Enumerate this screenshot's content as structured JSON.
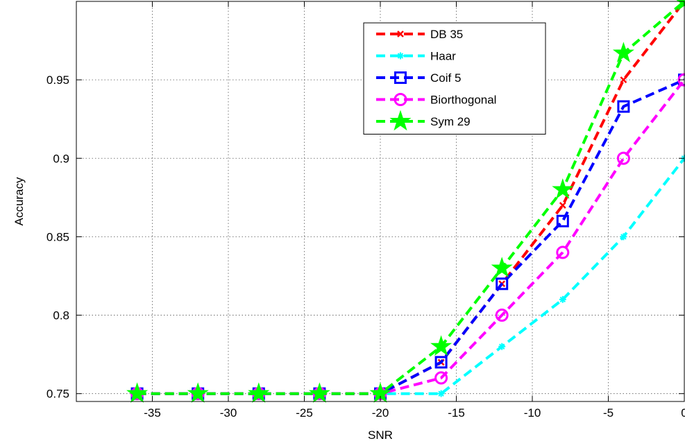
{
  "chart_data": {
    "type": "line",
    "title": "",
    "xlabel": "SNR",
    "ylabel": "Accuracy",
    "xlim": [
      -40,
      0
    ],
    "ylim": [
      0.745,
      1.0
    ],
    "xticks": [
      -35,
      -30,
      -25,
      -20,
      -15,
      -10,
      -5,
      0
    ],
    "yticks": [
      0.75,
      0.8,
      0.85,
      0.9,
      0.95
    ],
    "grid": true,
    "legend_position": "top-right",
    "x": [
      -36,
      -32,
      -28,
      -24,
      -20,
      -16,
      -12,
      -8,
      -4,
      0
    ],
    "series": [
      {
        "name": "DB 35",
        "color": "#ff0000",
        "marker": "x",
        "values": [
          0.75,
          0.75,
          0.75,
          0.75,
          0.75,
          0.77,
          0.82,
          0.87,
          0.95,
          1.0
        ]
      },
      {
        "name": "Haar",
        "color": "#00ffff",
        "marker": "asterisk",
        "values": [
          0.75,
          0.75,
          0.75,
          0.75,
          0.75,
          0.75,
          0.78,
          0.81,
          0.85,
          0.9
        ]
      },
      {
        "name": "Coif 5",
        "color": "#0000ff",
        "marker": "square",
        "values": [
          0.75,
          0.75,
          0.75,
          0.75,
          0.75,
          0.77,
          0.82,
          0.86,
          0.933,
          0.95
        ]
      },
      {
        "name": "Biorthogonal",
        "color": "#ff00ff",
        "marker": "circle",
        "values": [
          0.75,
          0.75,
          0.75,
          0.75,
          0.75,
          0.76,
          0.8,
          0.84,
          0.9,
          0.95
        ]
      },
      {
        "name": "Sym 29",
        "color": "#00ff00",
        "marker": "star",
        "values": [
          0.75,
          0.75,
          0.75,
          0.75,
          0.75,
          0.78,
          0.83,
          0.88,
          0.967,
          1.0
        ]
      }
    ]
  }
}
